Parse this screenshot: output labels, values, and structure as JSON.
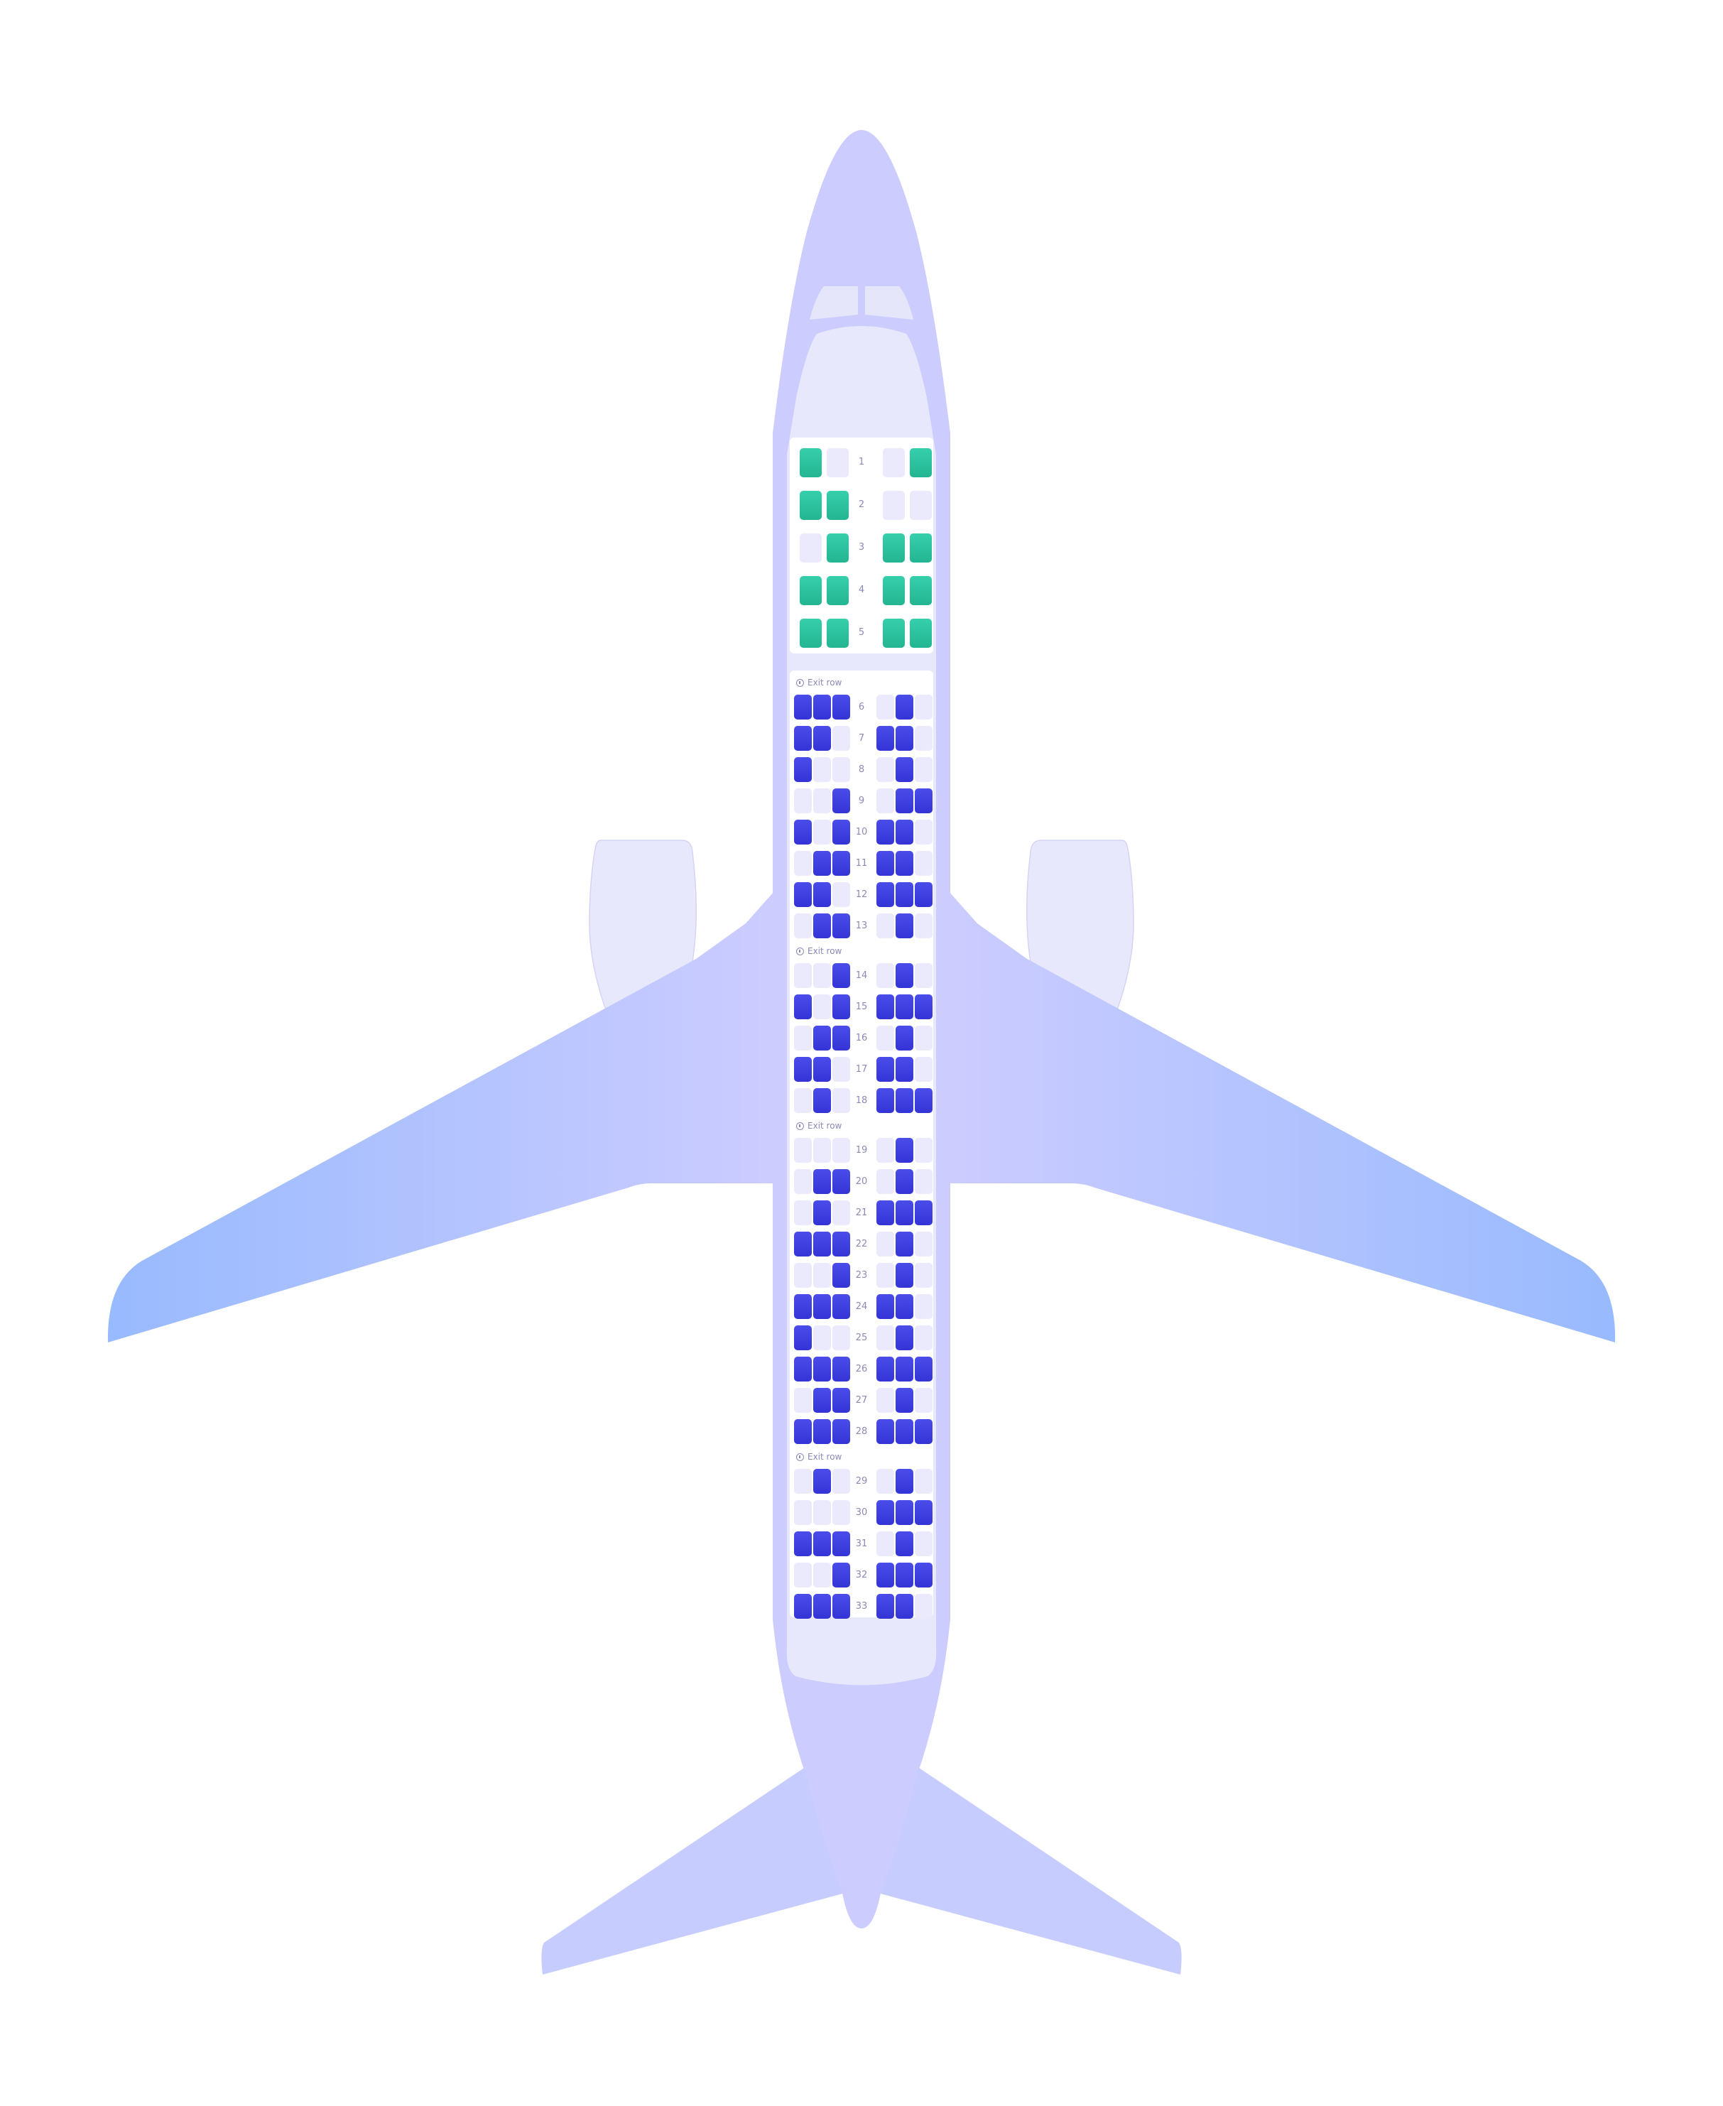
{
  "colors": {
    "fuselage": "#ccccff",
    "wing_tip": "#9ab8ff",
    "cabin_panel": "#e8e8fd",
    "economy_available": "#3b3be0",
    "business_available": "#2ec4a0",
    "seat_unavailable": "#eaeafc",
    "label_text": "#8a8ab8"
  },
  "exit_row_label": "Exit row",
  "business": {
    "rows": [
      {
        "num": "1",
        "seats": [
          1,
          0,
          0,
          1
        ]
      },
      {
        "num": "2",
        "seats": [
          1,
          1,
          0,
          0
        ]
      },
      {
        "num": "3",
        "seats": [
          0,
          1,
          1,
          1
        ]
      },
      {
        "num": "4",
        "seats": [
          1,
          1,
          1,
          1
        ]
      },
      {
        "num": "5",
        "seats": [
          1,
          1,
          1,
          1
        ]
      }
    ]
  },
  "economy": {
    "rows": [
      {
        "num": "6",
        "seats": [
          1,
          1,
          1,
          0,
          1,
          0
        ],
        "exit_before": true
      },
      {
        "num": "7",
        "seats": [
          1,
          1,
          0,
          1,
          1,
          0
        ]
      },
      {
        "num": "8",
        "seats": [
          1,
          0,
          0,
          0,
          1,
          0
        ]
      },
      {
        "num": "9",
        "seats": [
          0,
          0,
          1,
          0,
          1,
          1
        ]
      },
      {
        "num": "10",
        "seats": [
          1,
          0,
          1,
          1,
          1,
          0
        ]
      },
      {
        "num": "11",
        "seats": [
          0,
          1,
          1,
          1,
          1,
          0
        ]
      },
      {
        "num": "12",
        "seats": [
          1,
          1,
          0,
          1,
          1,
          1
        ]
      },
      {
        "num": "13",
        "seats": [
          0,
          1,
          1,
          0,
          1,
          0
        ]
      },
      {
        "num": "14",
        "seats": [
          0,
          0,
          1,
          0,
          1,
          0
        ],
        "exit_before": true
      },
      {
        "num": "15",
        "seats": [
          1,
          0,
          1,
          1,
          1,
          1
        ]
      },
      {
        "num": "16",
        "seats": [
          0,
          1,
          1,
          0,
          1,
          0
        ]
      },
      {
        "num": "17",
        "seats": [
          1,
          1,
          0,
          1,
          1,
          0
        ]
      },
      {
        "num": "18",
        "seats": [
          0,
          1,
          0,
          1,
          1,
          1
        ]
      },
      {
        "num": "19",
        "seats": [
          0,
          0,
          0,
          0,
          1,
          0
        ],
        "exit_before": true
      },
      {
        "num": "20",
        "seats": [
          0,
          1,
          1,
          0,
          1,
          0
        ]
      },
      {
        "num": "21",
        "seats": [
          0,
          1,
          0,
          1,
          1,
          1
        ]
      },
      {
        "num": "22",
        "seats": [
          1,
          1,
          1,
          0,
          1,
          0
        ]
      },
      {
        "num": "23",
        "seats": [
          0,
          0,
          1,
          0,
          1,
          0
        ]
      },
      {
        "num": "24",
        "seats": [
          1,
          1,
          1,
          1,
          1,
          0
        ]
      },
      {
        "num": "25",
        "seats": [
          1,
          0,
          0,
          0,
          1,
          0
        ]
      },
      {
        "num": "26",
        "seats": [
          1,
          1,
          1,
          1,
          1,
          1
        ]
      },
      {
        "num": "27",
        "seats": [
          0,
          1,
          1,
          0,
          1,
          0
        ]
      },
      {
        "num": "28",
        "seats": [
          1,
          1,
          1,
          1,
          1,
          1
        ]
      },
      {
        "num": "29",
        "seats": [
          0,
          1,
          0,
          0,
          1,
          0
        ],
        "exit_before": true
      },
      {
        "num": "30",
        "seats": [
          0,
          0,
          0,
          1,
          1,
          1
        ]
      },
      {
        "num": "31",
        "seats": [
          1,
          1,
          1,
          0,
          1,
          0
        ]
      },
      {
        "num": "32",
        "seats": [
          0,
          0,
          1,
          1,
          1,
          1
        ]
      },
      {
        "num": "33",
        "seats": [
          1,
          1,
          1,
          1,
          1,
          0
        ]
      }
    ]
  }
}
